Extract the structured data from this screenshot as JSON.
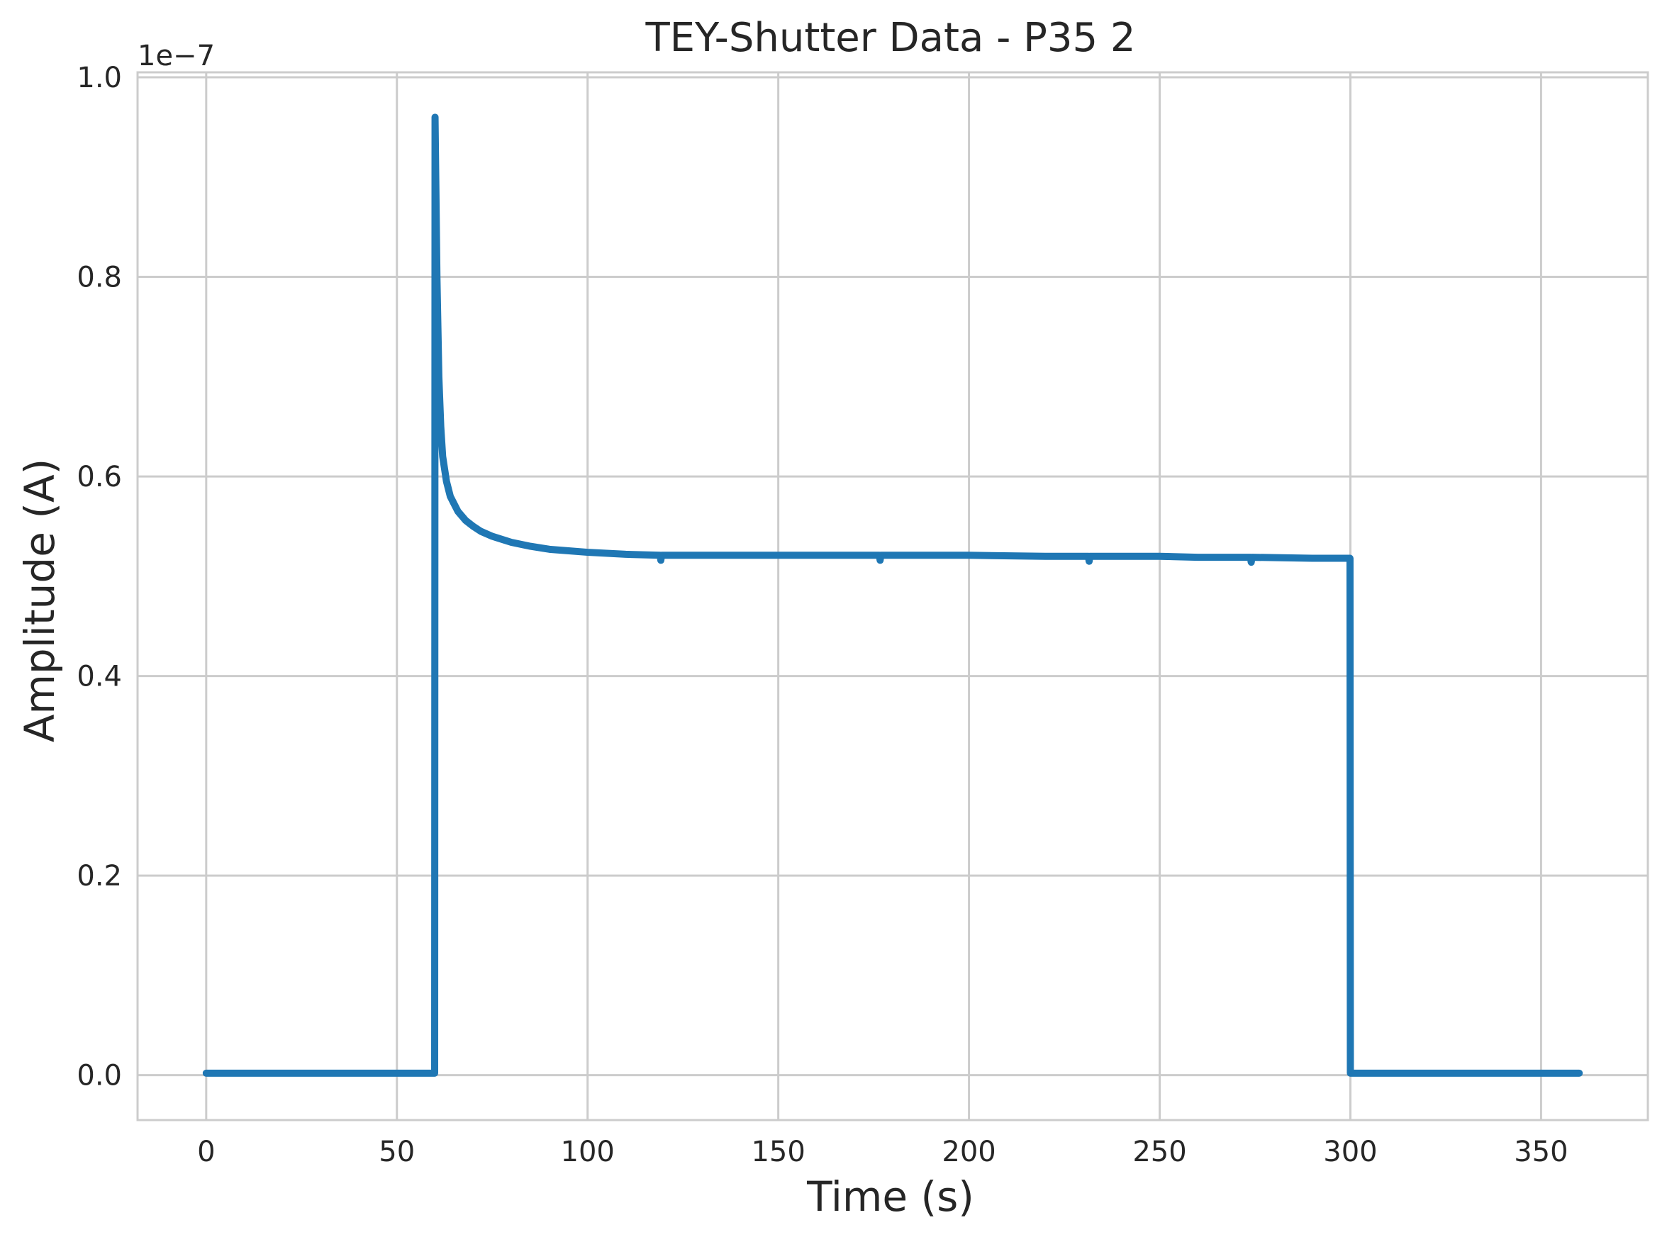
{
  "chart_data": {
    "type": "line",
    "title": "TEY-Shutter Data - P35 2",
    "xlabel": "Time (s)",
    "ylabel": "Amplitude (A)",
    "y_offset_label": "1e−7",
    "xlim": [
      -18,
      378
    ],
    "ylim": [
      -0.045,
      1.005
    ],
    "x_ticks": [
      0,
      50,
      100,
      150,
      200,
      250,
      300,
      350
    ],
    "x_tick_labels": [
      "0",
      "50",
      "100",
      "150",
      "200",
      "250",
      "300",
      "350"
    ],
    "y_ticks": [
      0.0,
      0.2,
      0.4,
      0.6,
      0.8,
      1.0
    ],
    "y_tick_labels": [
      "0.0",
      "0.2",
      "0.4",
      "0.6",
      "0.8",
      "1.0"
    ],
    "y_scale_note": "values in units of 1e-7 A",
    "grid": true,
    "line_color": "#1f77b4",
    "series": [
      {
        "points": [
          [
            0,
            0.002
          ],
          [
            30,
            0.002
          ],
          [
            59.9,
            0.002
          ],
          [
            60.0,
            0.96
          ],
          [
            60.5,
            0.8
          ],
          [
            61.0,
            0.7
          ],
          [
            61.5,
            0.65
          ],
          [
            62.0,
            0.62
          ],
          [
            63.0,
            0.595
          ],
          [
            64.0,
            0.58
          ],
          [
            66.0,
            0.565
          ],
          [
            68.0,
            0.556
          ],
          [
            70.0,
            0.55
          ],
          [
            72.0,
            0.545
          ],
          [
            75.0,
            0.54
          ],
          [
            80.0,
            0.534
          ],
          [
            85.0,
            0.53
          ],
          [
            90.0,
            0.527
          ],
          [
            100.0,
            0.524
          ],
          [
            110.0,
            0.522
          ],
          [
            119.0,
            0.521
          ],
          [
            119.2,
            0.516
          ],
          [
            119.4,
            0.521
          ],
          [
            140.0,
            0.521
          ],
          [
            160.0,
            0.521
          ],
          [
            176.5,
            0.521
          ],
          [
            176.7,
            0.516
          ],
          [
            176.9,
            0.521
          ],
          [
            200.0,
            0.521
          ],
          [
            220.0,
            0.52
          ],
          [
            231.3,
            0.52
          ],
          [
            231.5,
            0.515
          ],
          [
            231.7,
            0.52
          ],
          [
            250.0,
            0.52
          ],
          [
            260.0,
            0.519
          ],
          [
            273.8,
            0.519
          ],
          [
            274.0,
            0.514
          ],
          [
            274.2,
            0.519
          ],
          [
            290.0,
            0.518
          ],
          [
            299.9,
            0.518
          ],
          [
            300.0,
            0.002
          ],
          [
            330.0,
            0.002
          ],
          [
            360.0,
            0.002
          ]
        ]
      }
    ]
  }
}
